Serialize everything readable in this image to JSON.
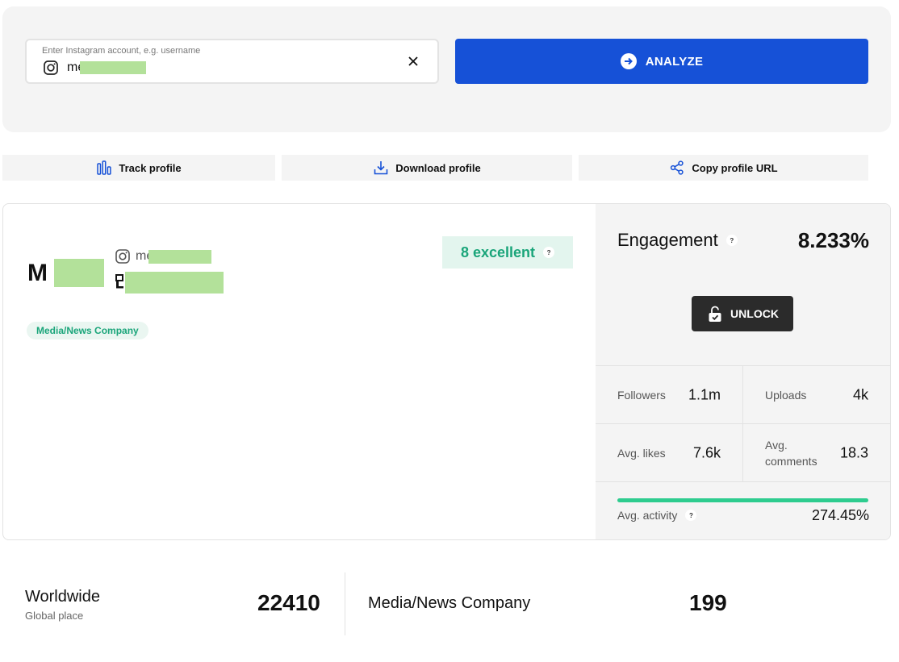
{
  "search": {
    "placeholder": "Enter Instagram account, e.g. username",
    "value": "me          _official"
  },
  "analyze": {
    "label": "ANALYZE"
  },
  "actions": {
    "track": "Track profile",
    "download": "Download profile",
    "copy": "Copy profile URL"
  },
  "profile": {
    "handle": "me          e_official",
    "category": "Media/News Company",
    "score_label": "8 excellent"
  },
  "engagement": {
    "label": "Engagement",
    "value": "8.233%"
  },
  "unlock": {
    "label": "UNLOCK"
  },
  "stats": {
    "followers_label": "Followers",
    "followers": "1.1m",
    "uploads_label": "Uploads",
    "uploads": "4k",
    "avg_likes_label": "Avg. likes",
    "avg_likes": "7.6k",
    "avg_comments_label": "Avg. comments",
    "avg_comments": "18.3"
  },
  "activity": {
    "label": "Avg. activity",
    "value": "274.45%",
    "fill_fraction": 1.0
  },
  "ranks": {
    "world_title": "Worldwide",
    "world_sub": "Global place",
    "world_value": "22410",
    "cat_title": "Media/News Company",
    "cat_value": "199"
  },
  "colors": {
    "brand": "#1651d7",
    "success": "#1aa57a",
    "bar": "#2ecc8f",
    "dark": "#2b2b2b"
  }
}
